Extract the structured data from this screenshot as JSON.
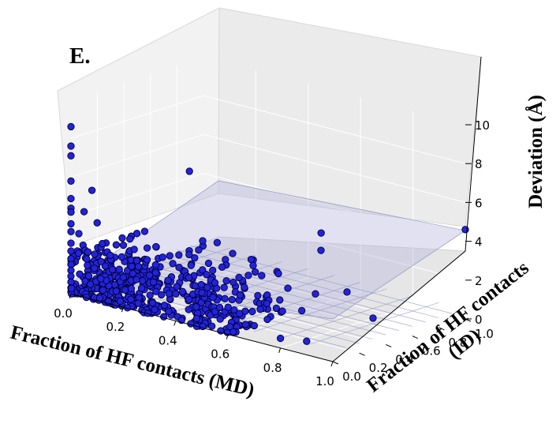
{
  "panel_label": "E.",
  "chart_data": {
    "type": "scatter",
    "projection": "3d",
    "panel": "E.",
    "xlabel": "Fraction of HF contacts (MD)",
    "ylabel": "Fraction of HF contacts (ID)",
    "zlabel": "Deviation (Å)",
    "xlim": [
      0,
      1
    ],
    "ylim": [
      0,
      1
    ],
    "zlim": [
      0,
      10
    ],
    "x_ticks": [
      "0.0",
      "0.2",
      "0.4",
      "0.6",
      "0.8",
      "1.0"
    ],
    "y_ticks": [
      "0.0",
      "0.2",
      "0.4",
      "0.6",
      "0.8",
      "1.0"
    ],
    "z_ticks": [
      "0",
      "2",
      "4",
      "6",
      "8",
      "10"
    ],
    "grid": true,
    "reference_plane": {
      "z": 0.5,
      "color": "#b8b8de"
    },
    "marker_color": "#2323dc",
    "marker_edge": "#000030",
    "points": [
      {
        "x": 0.0,
        "y": 0.0,
        "z": 8.6
      },
      {
        "x": 0.0,
        "y": 0.0,
        "z": 7.6
      },
      {
        "x": 0.0,
        "y": 0.0,
        "z": 7.1
      },
      {
        "x": 0.0,
        "y": 0.0,
        "z": 5.8
      },
      {
        "x": 0.0,
        "y": 0.0,
        "z": 4.9
      },
      {
        "x": 0.0,
        "y": 0.0,
        "z": 4.4
      },
      {
        "x": 0.0,
        "y": 0.0,
        "z": 4.2
      },
      {
        "x": 0.0,
        "y": 0.0,
        "z": 3.6
      },
      {
        "x": 0.0,
        "y": 0.0,
        "z": 3.2
      },
      {
        "x": 0.0,
        "y": 0.0,
        "z": 2.6
      },
      {
        "x": 0.0,
        "y": 0.0,
        "z": 2.2
      },
      {
        "x": 0.0,
        "y": 0.0,
        "z": 1.8
      },
      {
        "x": 0.0,
        "y": 0.0,
        "z": 1.5
      },
      {
        "x": 0.0,
        "y": 0.0,
        "z": 1.2
      },
      {
        "x": 0.0,
        "y": 0.0,
        "z": 0.9
      },
      {
        "x": 0.0,
        "y": 0.0,
        "z": 0.6
      },
      {
        "x": 0.0,
        "y": 0.0,
        "z": 0.3
      },
      {
        "x": 0.0,
        "y": 0.0,
        "z": 0.1
      },
      {
        "x": 0.05,
        "y": 0.0,
        "z": 4.4
      },
      {
        "x": 0.03,
        "y": 0.0,
        "z": 3.2
      },
      {
        "x": 0.08,
        "y": 0.0,
        "z": 5.6
      },
      {
        "x": 0.1,
        "y": 0.0,
        "z": 4.0
      },
      {
        "x": 0.12,
        "y": 0.0,
        "z": 3.0
      },
      {
        "x": 0.06,
        "y": 0.0,
        "z": 2.0
      },
      {
        "x": 0.15,
        "y": 0.0,
        "z": 2.5
      },
      {
        "x": 0.2,
        "y": 0.0,
        "z": 3.2
      },
      {
        "x": 0.25,
        "y": 0.0,
        "z": 1.6
      },
      {
        "x": 0.35,
        "y": 0.0,
        "z": 3.1
      },
      {
        "x": 0.3,
        "y": 0.0,
        "z": 2.0
      },
      {
        "x": 0.4,
        "y": 0.0,
        "z": 1.4
      },
      {
        "x": 0.45,
        "y": 0.0,
        "z": 2.4
      },
      {
        "x": 0.5,
        "y": 0.0,
        "z": 1.8
      },
      {
        "x": 0.55,
        "y": 0.0,
        "z": 1.0
      },
      {
        "x": 0.6,
        "y": 0.0,
        "z": 1.4
      },
      {
        "x": 0.7,
        "y": 0.0,
        "z": 0.8
      },
      {
        "x": 0.75,
        "y": 0.0,
        "z": 1.3
      },
      {
        "x": 0.8,
        "y": 0.0,
        "z": 0.5
      },
      {
        "x": 0.9,
        "y": 0.0,
        "z": 0.7
      },
      {
        "x": 0.32,
        "y": 0.0,
        "z": 0.3
      },
      {
        "x": 0.48,
        "y": 0.0,
        "z": 0.4
      },
      {
        "x": 0.62,
        "y": 0.0,
        "z": 0.2
      },
      {
        "x": 0.22,
        "y": 0.0,
        "z": 0.6
      },
      {
        "x": 0.25,
        "y": 0.4,
        "z": 6.3
      },
      {
        "x": 0.28,
        "y": 0.55,
        "z": 2.4
      },
      {
        "x": 0.45,
        "y": 0.55,
        "z": 1.3
      },
      {
        "x": 0.4,
        "y": 0.6,
        "z": 1.2
      },
      {
        "x": 0.55,
        "y": 0.55,
        "z": 1.0
      },
      {
        "x": 0.62,
        "y": 0.62,
        "z": 0.8
      },
      {
        "x": 0.55,
        "y": 0.8,
        "z": 2.4
      },
      {
        "x": 0.5,
        "y": 0.9,
        "z": 2.9
      },
      {
        "x": 0.7,
        "y": 0.7,
        "z": 1.0
      },
      {
        "x": 0.85,
        "y": 0.6,
        "z": 0.4
      },
      {
        "x": 0.3,
        "y": 0.3,
        "z": 2.6
      },
      {
        "x": 0.18,
        "y": 0.2,
        "z": 3.4
      },
      {
        "x": 0.35,
        "y": 0.2,
        "z": 2.8
      },
      {
        "x": 0.4,
        "y": 0.35,
        "z": 2.0
      },
      {
        "x": 0.25,
        "y": 0.5,
        "z": 2.5
      },
      {
        "x": 0.4,
        "y": 0.45,
        "z": 0.5
      },
      {
        "x": 0.2,
        "y": 0.45,
        "z": 0.9
      },
      {
        "x": 0.3,
        "y": 0.4,
        "z": 1.4
      },
      {
        "x": 0.35,
        "y": 0.55,
        "z": 0.4
      },
      {
        "x": 1.0,
        "y": 1.0,
        "z": 4.6
      }
    ]
  }
}
